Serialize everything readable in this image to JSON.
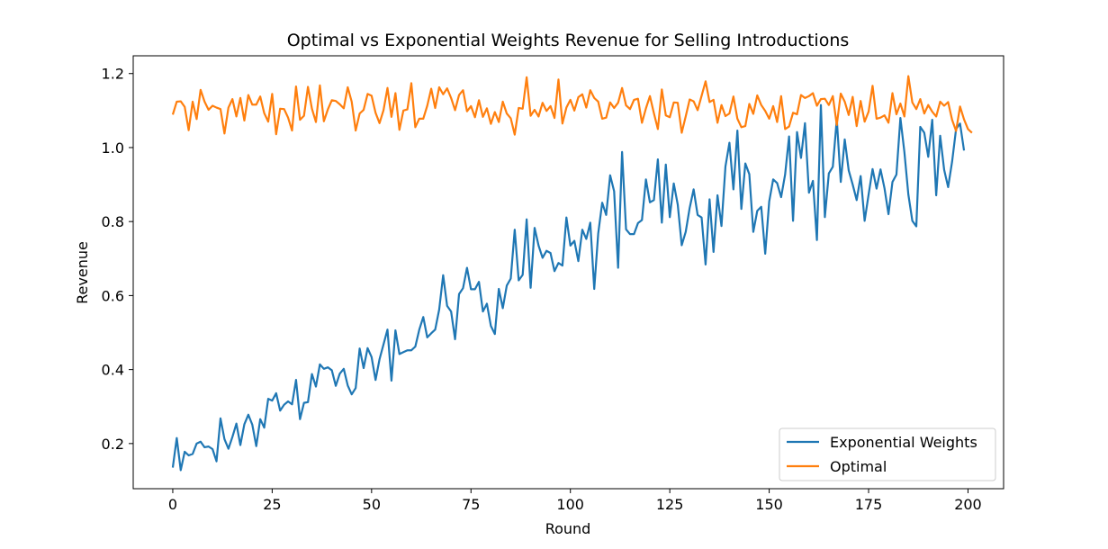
{
  "chart_data": {
    "type": "line",
    "title": "Optimal vs Exponential Weights Revenue for Selling Introductions",
    "xlabel": "Round",
    "ylabel": "Revenue",
    "xlim": [
      -9.95,
      208.95
    ],
    "ylim": [
      0.078,
      1.248
    ],
    "xticks": [
      0,
      25,
      50,
      75,
      100,
      125,
      150,
      175,
      200
    ],
    "xtick_labels": [
      "0",
      "25",
      "50",
      "75",
      "100",
      "125",
      "150",
      "175",
      "200"
    ],
    "yticks": [
      0.2,
      0.4,
      0.6,
      0.8,
      1.0,
      1.2
    ],
    "ytick_labels": [
      "0.2",
      "0.4",
      "0.6",
      "0.8",
      "1.0",
      "1.2"
    ],
    "grid": false,
    "legend_position": "lower-right",
    "series": [
      {
        "name": "Exponential Weights",
        "color": "#1f77b4",
        "values": [
          0.135,
          0.215,
          0.128,
          0.178,
          0.168,
          0.172,
          0.2,
          0.205,
          0.19,
          0.192,
          0.185,
          0.152,
          0.268,
          0.212,
          0.186,
          0.218,
          0.254,
          0.196,
          0.252,
          0.278,
          0.251,
          0.193,
          0.266,
          0.243,
          0.321,
          0.316,
          0.336,
          0.289,
          0.305,
          0.314,
          0.306,
          0.372,
          0.266,
          0.31,
          0.312,
          0.388,
          0.354,
          0.414,
          0.402,
          0.406,
          0.398,
          0.356,
          0.389,
          0.402,
          0.357,
          0.333,
          0.35,
          0.457,
          0.404,
          0.458,
          0.434,
          0.372,
          0.428,
          0.468,
          0.508,
          0.37,
          0.506,
          0.442,
          0.447,
          0.452,
          0.452,
          0.462,
          0.508,
          0.542,
          0.487,
          0.498,
          0.508,
          0.562,
          0.655,
          0.572,
          0.557,
          0.482,
          0.604,
          0.62,
          0.675,
          0.617,
          0.617,
          0.637,
          0.557,
          0.578,
          0.518,
          0.496,
          0.618,
          0.566,
          0.627,
          0.646,
          0.778,
          0.641,
          0.656,
          0.806,
          0.621,
          0.783,
          0.735,
          0.702,
          0.721,
          0.715,
          0.666,
          0.688,
          0.681,
          0.811,
          0.735,
          0.748,
          0.693,
          0.778,
          0.753,
          0.797,
          0.618,
          0.768,
          0.851,
          0.818,
          0.925,
          0.882,
          0.675,
          0.988,
          0.779,
          0.766,
          0.766,
          0.796,
          0.804,
          0.914,
          0.852,
          0.858,
          0.968,
          0.797,
          0.954,
          0.812,
          0.903,
          0.846,
          0.736,
          0.772,
          0.837,
          0.887,
          0.818,
          0.811,
          0.684,
          0.86,
          0.718,
          0.871,
          0.788,
          0.949,
          1.013,
          0.887,
          1.046,
          0.834,
          0.957,
          0.928,
          0.772,
          0.829,
          0.84,
          0.713,
          0.854,
          0.914,
          0.904,
          0.866,
          0.927,
          1.03,
          0.802,
          1.042,
          0.972,
          1.066,
          0.878,
          0.91,
          0.75,
          1.115,
          0.812,
          0.93,
          0.948,
          1.077,
          0.907,
          1.022,
          0.938,
          0.9,
          0.858,
          0.923,
          0.802,
          0.873,
          0.942,
          0.889,
          0.941,
          0.89,
          0.82,
          0.907,
          0.927,
          1.08,
          0.988,
          0.873,
          0.802,
          0.787,
          1.056,
          1.04,
          0.975,
          1.075,
          0.871,
          1.032,
          0.94,
          0.893,
          0.962,
          1.05,
          1.065,
          0.992
        ]
      },
      {
        "name": "Optimal",
        "color": "#ff7f0e",
        "values": [
          1.089,
          1.124,
          1.125,
          1.11,
          1.047,
          1.124,
          1.077,
          1.156,
          1.124,
          1.102,
          1.113,
          1.108,
          1.104,
          1.038,
          1.108,
          1.131,
          1.084,
          1.134,
          1.073,
          1.142,
          1.116,
          1.116,
          1.138,
          1.093,
          1.07,
          1.145,
          1.036,
          1.105,
          1.104,
          1.081,
          1.046,
          1.165,
          1.075,
          1.086,
          1.164,
          1.105,
          1.069,
          1.168,
          1.071,
          1.103,
          1.128,
          1.126,
          1.117,
          1.106,
          1.163,
          1.124,
          1.046,
          1.092,
          1.102,
          1.145,
          1.14,
          1.094,
          1.066,
          1.101,
          1.161,
          1.083,
          1.147,
          1.048,
          1.1,
          1.103,
          1.174,
          1.055,
          1.078,
          1.078,
          1.113,
          1.159,
          1.107,
          1.163,
          1.144,
          1.16,
          1.134,
          1.101,
          1.142,
          1.155,
          1.098,
          1.112,
          1.082,
          1.128,
          1.083,
          1.106,
          1.064,
          1.096,
          1.069,
          1.124,
          1.092,
          1.079,
          1.035,
          1.107,
          1.105,
          1.19,
          1.086,
          1.102,
          1.084,
          1.121,
          1.099,
          1.112,
          1.08,
          1.184,
          1.065,
          1.108,
          1.129,
          1.1,
          1.136,
          1.144,
          1.108,
          1.155,
          1.134,
          1.124,
          1.078,
          1.081,
          1.122,
          1.107,
          1.121,
          1.161,
          1.114,
          1.104,
          1.129,
          1.132,
          1.067,
          1.106,
          1.139,
          1.093,
          1.05,
          1.157,
          1.087,
          1.082,
          1.122,
          1.121,
          1.04,
          1.084,
          1.13,
          1.125,
          1.101,
          1.14,
          1.179,
          1.123,
          1.129,
          1.067,
          1.115,
          1.085,
          1.092,
          1.138,
          1.078,
          1.055,
          1.058,
          1.118,
          1.091,
          1.141,
          1.115,
          1.099,
          1.078,
          1.112,
          1.069,
          1.139,
          1.05,
          1.057,
          1.094,
          1.09,
          1.142,
          1.134,
          1.139,
          1.147,
          1.113,
          1.131,
          1.132,
          1.115,
          1.139,
          1.061,
          1.146,
          1.124,
          1.088,
          1.137,
          1.058,
          1.126,
          1.07,
          1.097,
          1.167,
          1.078,
          1.081,
          1.087,
          1.067,
          1.147,
          1.09,
          1.119,
          1.084,
          1.193,
          1.122,
          1.104,
          1.131,
          1.092,
          1.115,
          1.097,
          1.084,
          1.124,
          1.113,
          1.123,
          1.075,
          1.045,
          1.111,
          1.076,
          1.05,
          1.04
        ]
      }
    ]
  }
}
